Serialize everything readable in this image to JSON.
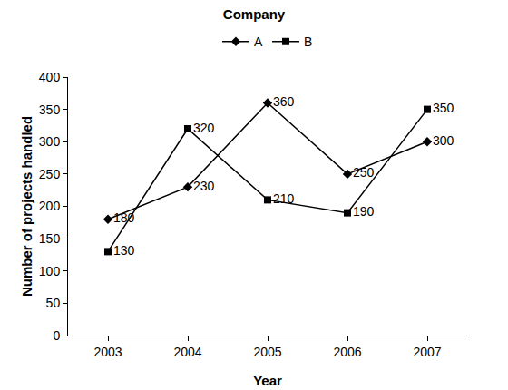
{
  "chart_data": {
    "type": "line",
    "title": "Company",
    "categories": [
      "2003",
      "2004",
      "2005",
      "2006",
      "2007"
    ],
    "series": [
      {
        "name": "A",
        "color": "#000000",
        "marker": "diamond",
        "values": [
          180,
          230,
          360,
          250,
          300
        ]
      },
      {
        "name": "B",
        "color": "#000000",
        "marker": "square",
        "values": [
          130,
          320,
          210,
          190,
          350
        ]
      }
    ],
    "x_label": "Year",
    "y_label": "Number of projects handled",
    "ylim": [
      0,
      400
    ],
    "yticks": [
      0,
      50,
      100,
      150,
      200,
      250,
      300,
      350,
      400
    ],
    "grid": false,
    "legend": "top",
    "data_labels": true
  }
}
